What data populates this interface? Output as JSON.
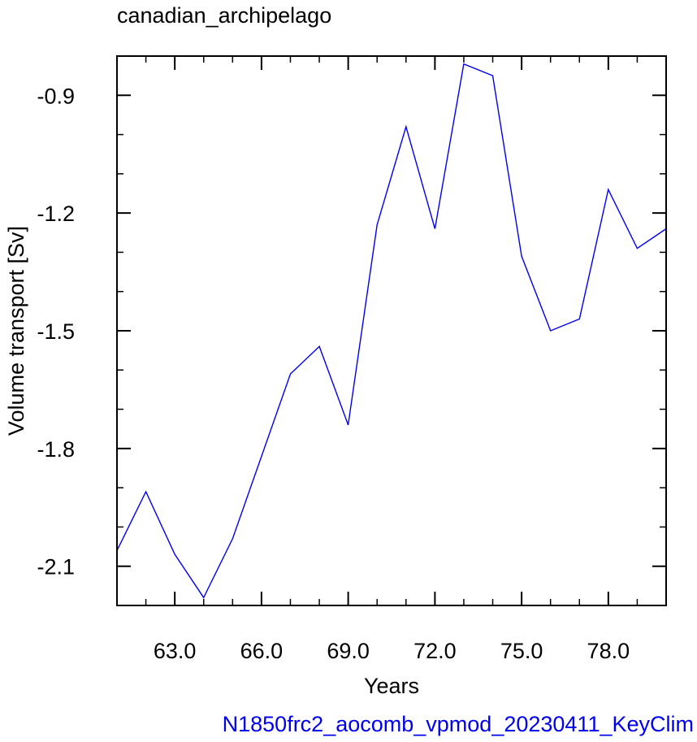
{
  "chart_data": {
    "type": "line",
    "title": "canadian_archipelago",
    "xlabel": "Years",
    "ylabel": "Volume transport [Sv]",
    "xlim": [
      61,
      80
    ],
    "ylim": [
      -2.2,
      -0.8
    ],
    "xticks": [
      63,
      66,
      69,
      72,
      75,
      78
    ],
    "xtick_labels": [
      "63.0",
      "66.0",
      "69.0",
      "72.0",
      "75.0",
      "78.0"
    ],
    "yticks": [
      -2.1,
      -1.8,
      -1.5,
      -1.2,
      -0.9
    ],
    "ytick_labels": [
      "-2.1",
      "-1.8",
      "-1.5",
      "-1.2",
      "-0.9"
    ],
    "grid": false,
    "line_color": "#0000ee",
    "x": [
      61,
      62,
      63,
      64,
      65,
      66,
      67,
      68,
      69,
      70,
      71,
      72,
      73,
      74,
      75,
      76,
      77,
      78,
      79,
      80
    ],
    "series": [
      {
        "values": [
          -2.06,
          -1.91,
          -2.07,
          -2.18,
          -2.03,
          -1.82,
          -1.61,
          -1.54,
          -1.74,
          -1.23,
          -0.98,
          -1.24,
          -0.82,
          -0.85,
          -1.31,
          -1.5,
          -1.47,
          -1.14,
          -1.29,
          -1.24
        ]
      }
    ]
  },
  "caption": "N1850frc2_aocomb_vpmod_20230411_KeyClim"
}
